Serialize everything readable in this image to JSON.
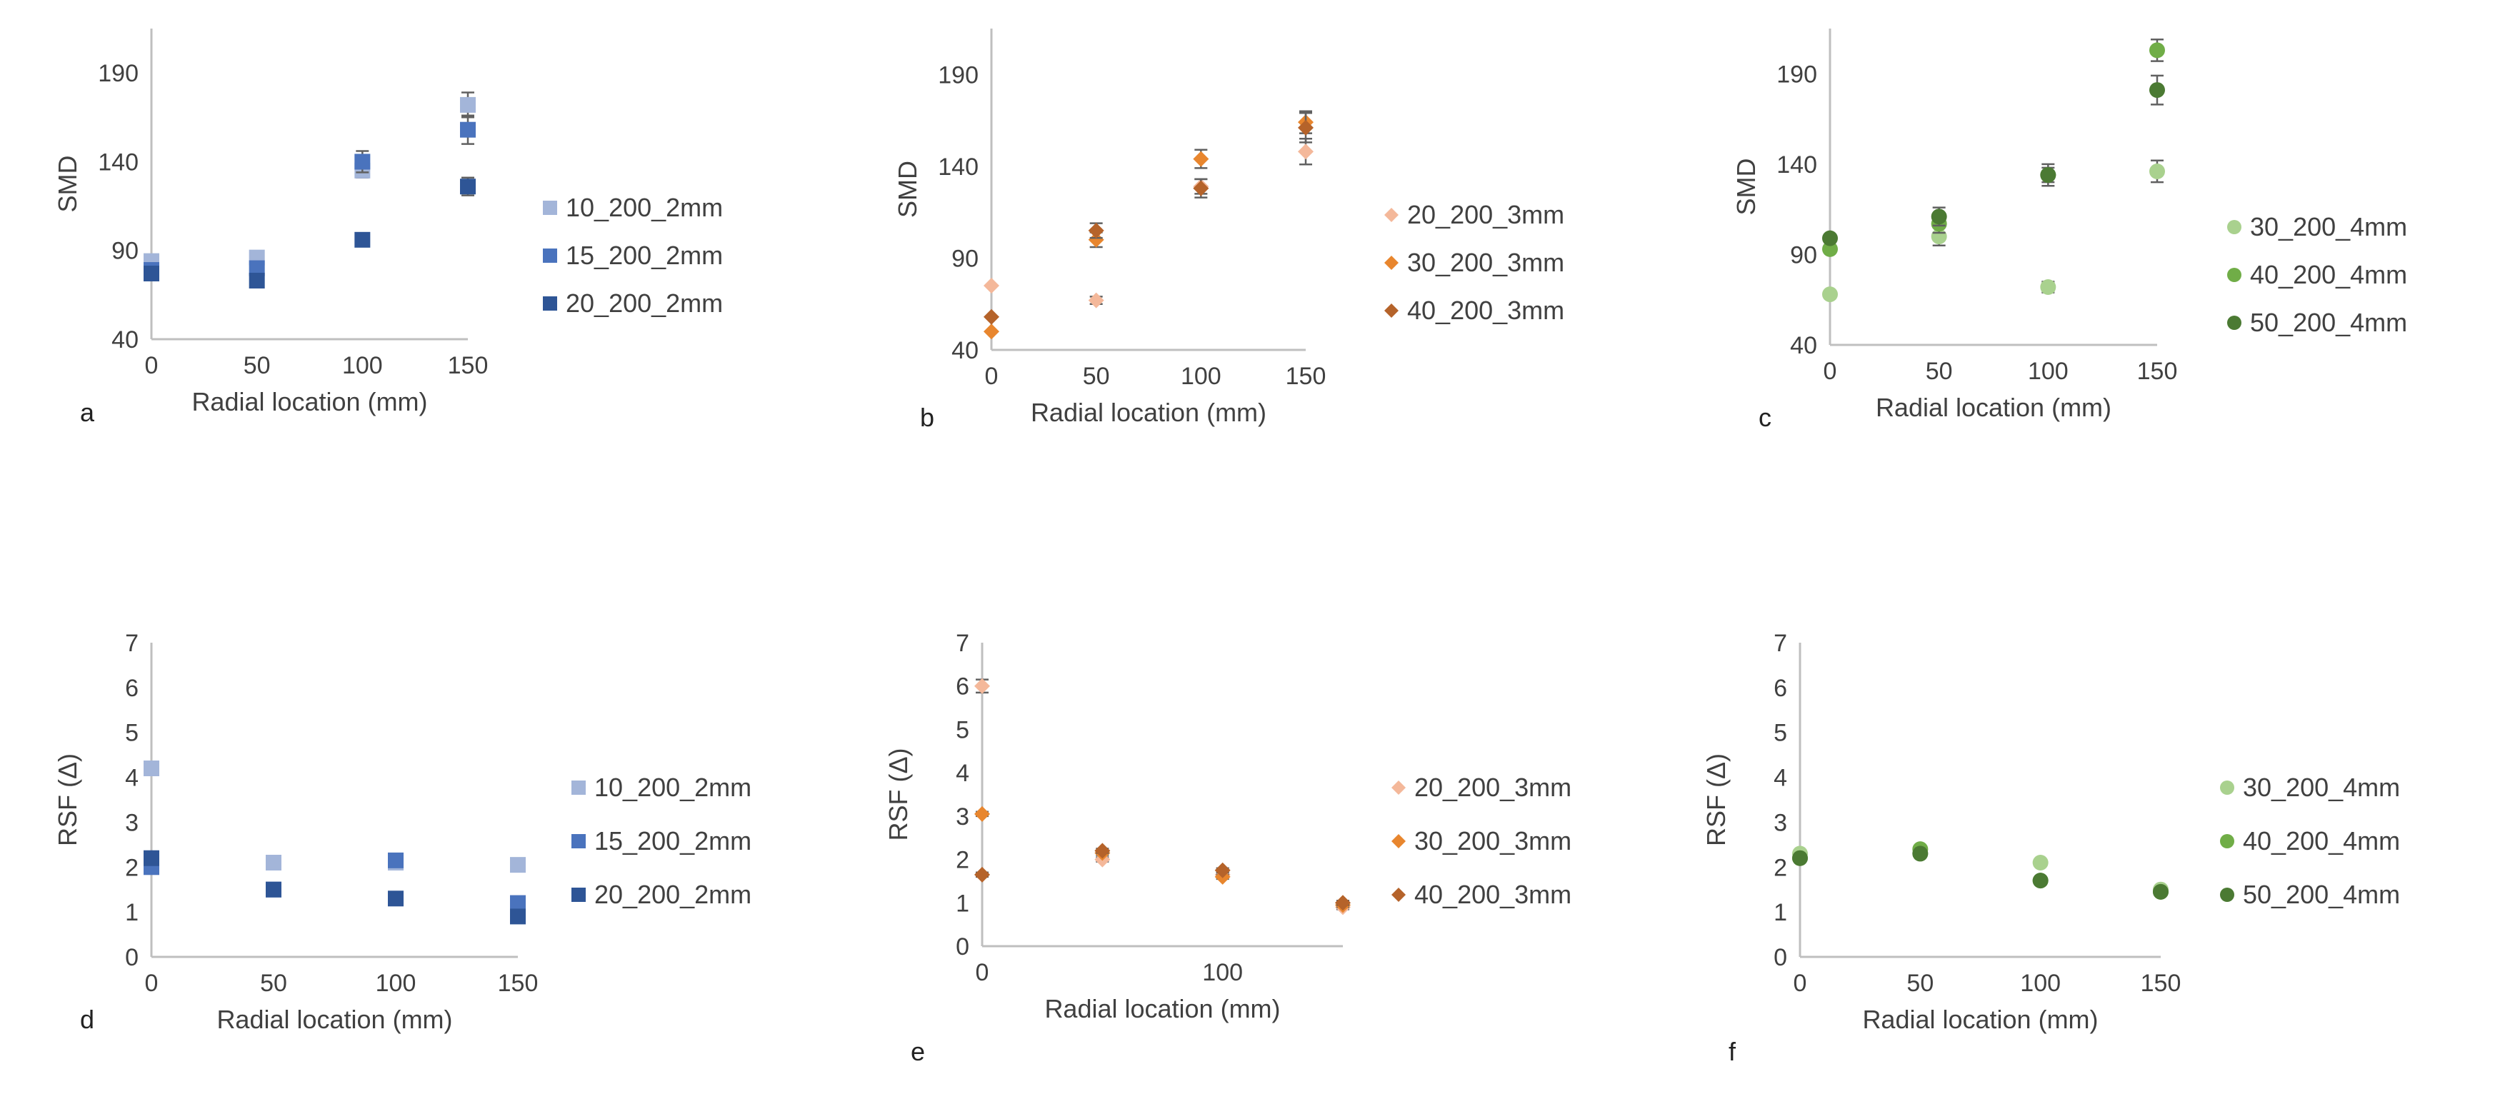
{
  "chart_data": [
    {
      "panel": "a",
      "type": "scatter",
      "marker": "square",
      "xlabel": "Radial location (mm)",
      "ylabel": "SMD",
      "xlim": [
        0,
        150
      ],
      "xticks": [
        0,
        50,
        100,
        150
      ],
      "ylim": [
        40,
        215
      ],
      "yticks": [
        40,
        90,
        140,
        190
      ],
      "series": [
        {
          "name": "10_200_2mm",
          "color": "#a3b5d9",
          "x": [
            0,
            50,
            100,
            150
          ],
          "y": [
            84,
            86,
            135,
            172
          ],
          "err": [
            0,
            0,
            4,
            7
          ]
        },
        {
          "name": "15_200_2mm",
          "color": "#4a73bd",
          "x": [
            0,
            50,
            100,
            150
          ],
          "y": [
            79,
            80,
            140,
            158
          ],
          "err": [
            0,
            0,
            6,
            8
          ]
        },
        {
          "name": "20_200_2mm",
          "color": "#2e5596",
          "x": [
            0,
            50,
            100,
            150
          ],
          "y": [
            77,
            73,
            96,
            126
          ],
          "err": [
            0,
            0,
            3,
            5
          ]
        }
      ]
    },
    {
      "panel": "b",
      "type": "scatter",
      "marker": "diamond",
      "xlabel": "Radial location (mm)",
      "ylabel": "SMD",
      "xlim": [
        0,
        150
      ],
      "xticks": [
        0,
        50,
        100,
        150
      ],
      "ylim": [
        40,
        215
      ],
      "yticks": [
        40,
        90,
        140,
        190
      ],
      "series": [
        {
          "name": "20_200_3mm",
          "color": "#f4b89a",
          "x": [
            0,
            50,
            100,
            150
          ],
          "y": [
            75,
            67,
            129,
            148
          ],
          "err": [
            0,
            2,
            4,
            7
          ]
        },
        {
          "name": "30_200_3mm",
          "color": "#e8862e",
          "x": [
            0,
            50,
            100,
            150
          ],
          "y": [
            50,
            100,
            144,
            164
          ],
          "err": [
            0,
            4,
            5,
            6
          ]
        },
        {
          "name": "40_200_3mm",
          "color": "#b5632a",
          "x": [
            0,
            50,
            100,
            150
          ],
          "y": [
            58,
            105,
            128,
            161
          ],
          "err": [
            0,
            4,
            5,
            8
          ]
        }
      ]
    },
    {
      "panel": "c",
      "type": "scatter",
      "marker": "circle",
      "xlabel": "Radial location (mm)",
      "ylabel": "SMD",
      "xlim": [
        0,
        150
      ],
      "xticks": [
        0,
        50,
        100,
        150
      ],
      "ylim": [
        40,
        215
      ],
      "yticks": [
        40,
        90,
        140,
        190
      ],
      "series": [
        {
          "name": "30_200_4mm",
          "color": "#a9d18e",
          "x": [
            0,
            50,
            100,
            150
          ],
          "y": [
            68,
            100,
            72,
            136
          ],
          "err": [
            0,
            5,
            3,
            6
          ]
        },
        {
          "name": "40_200_4mm",
          "color": "#70ad47",
          "x": [
            0,
            50,
            100,
            150
          ],
          "y": [
            93,
            107,
            134,
            203
          ],
          "err": [
            0,
            5,
            4,
            6
          ]
        },
        {
          "name": "50_200_4mm",
          "color": "#4b7a33",
          "x": [
            0,
            50,
            100,
            150
          ],
          "y": [
            99,
            111,
            134,
            181
          ],
          "err": [
            0,
            5,
            6,
            8
          ]
        }
      ]
    },
    {
      "panel": "d",
      "type": "scatter",
      "marker": "square",
      "xlabel": "Radial location (mm)",
      "ylabel": "RSF (Δ)",
      "xlim": [
        0,
        150
      ],
      "xticks": [
        0,
        50,
        100,
        150
      ],
      "ylim": [
        0,
        7
      ],
      "yticks": [
        0,
        1,
        2,
        3,
        4,
        5,
        6,
        7
      ],
      "series": [
        {
          "name": "10_200_2mm",
          "color": "#a3b5d9",
          "x": [
            0,
            50,
            100,
            150
          ],
          "y": [
            4.2,
            2.1,
            2.1,
            2.05
          ],
          "err": [
            0,
            0,
            0,
            0
          ]
        },
        {
          "name": "15_200_2mm",
          "color": "#4a73bd",
          "x": [
            0,
            50,
            100,
            150
          ],
          "y": [
            2.0,
            1.5,
            2.15,
            1.2
          ],
          "err": [
            0,
            0,
            0,
            0
          ]
        },
        {
          "name": "20_200_2mm",
          "color": "#2e5596",
          "x": [
            0,
            50,
            100,
            150
          ],
          "y": [
            2.2,
            1.5,
            1.3,
            0.9
          ],
          "err": [
            0,
            0,
            0,
            0
          ]
        }
      ]
    },
    {
      "panel": "e",
      "type": "scatter",
      "marker": "diamond",
      "xlabel": "Radial location (mm)",
      "ylabel": "RSF (Δ)",
      "xlim": [
        0,
        150
      ],
      "xticks": [
        0,
        100
      ],
      "ylim": [
        0,
        7
      ],
      "yticks": [
        0,
        1,
        2,
        3,
        4,
        5,
        6,
        7
      ],
      "series": [
        {
          "name": "20_200_3mm",
          "color": "#f4b89a",
          "x": [
            0,
            50,
            100,
            150
          ],
          "y": [
            6.0,
            2.0,
            1.65,
            0.9
          ],
          "err": [
            0.15,
            0.05,
            0.05,
            0.05
          ]
        },
        {
          "name": "30_200_3mm",
          "color": "#e8862e",
          "x": [
            0,
            50,
            100,
            150
          ],
          "y": [
            3.05,
            2.15,
            1.6,
            0.95
          ],
          "err": [
            0.05,
            0.05,
            0.05,
            0.05
          ]
        },
        {
          "name": "40_200_3mm",
          "color": "#b5632a",
          "x": [
            0,
            50,
            100,
            150
          ],
          "y": [
            1.65,
            2.2,
            1.75,
            1.0
          ],
          "err": [
            0.05,
            0.05,
            0.05,
            0.05
          ]
        }
      ]
    },
    {
      "panel": "f",
      "type": "scatter",
      "marker": "circle",
      "xlabel": "Radial location (mm)",
      "ylabel": "RSF (Δ)",
      "xlim": [
        0,
        150
      ],
      "xticks": [
        0,
        50,
        100,
        150
      ],
      "ylim": [
        0,
        7
      ],
      "yticks": [
        0,
        1,
        2,
        3,
        4,
        5,
        6,
        7
      ],
      "series": [
        {
          "name": "30_200_4mm",
          "color": "#a9d18e",
          "x": [
            0,
            50,
            100,
            150
          ],
          "y": [
            2.3,
            2.3,
            2.1,
            1.5
          ],
          "err": [
            0,
            0,
            0,
            0
          ]
        },
        {
          "name": "40_200_4mm",
          "color": "#70ad47",
          "x": [
            0,
            50,
            100,
            150
          ],
          "y": [
            2.2,
            2.4,
            1.7,
            1.45
          ],
          "err": [
            0,
            0,
            0,
            0
          ]
        },
        {
          "name": "50_200_4mm",
          "color": "#4b7a33",
          "x": [
            0,
            50,
            100,
            150
          ],
          "y": [
            2.2,
            2.3,
            1.7,
            1.45
          ],
          "err": [
            0,
            0,
            0,
            0
          ]
        }
      ]
    }
  ]
}
